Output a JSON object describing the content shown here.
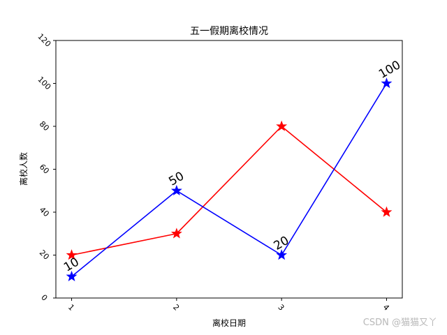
{
  "watermark": "CSDN @猫猫又丫",
  "colors": {
    "series_a": "#0000ff",
    "series_b": "#ff0000",
    "axes": "#000000",
    "background": "#ffffff"
  },
  "chart_data": {
    "type": "line",
    "title": "五一假期离校情况",
    "xlabel": "离校日期",
    "ylabel": "离校人数",
    "x": [
      1,
      2,
      3,
      4
    ],
    "xticks": [
      "1",
      "2",
      "3",
      "4"
    ],
    "yticks": [
      "0",
      "20",
      "40",
      "60",
      "80",
      "100",
      "120"
    ],
    "ylim": [
      0,
      120
    ],
    "grid": false,
    "legend": "none",
    "marker": "star",
    "tick_label_rotation": 45,
    "data_label_rotation": -30,
    "series": [
      {
        "color": "#0000ff",
        "values": [
          10,
          50,
          20,
          100
        ],
        "data_labels": [
          "10",
          "50",
          "20",
          "100"
        ]
      },
      {
        "color": "#ff0000",
        "values": [
          20,
          30,
          80,
          40
        ]
      }
    ]
  }
}
